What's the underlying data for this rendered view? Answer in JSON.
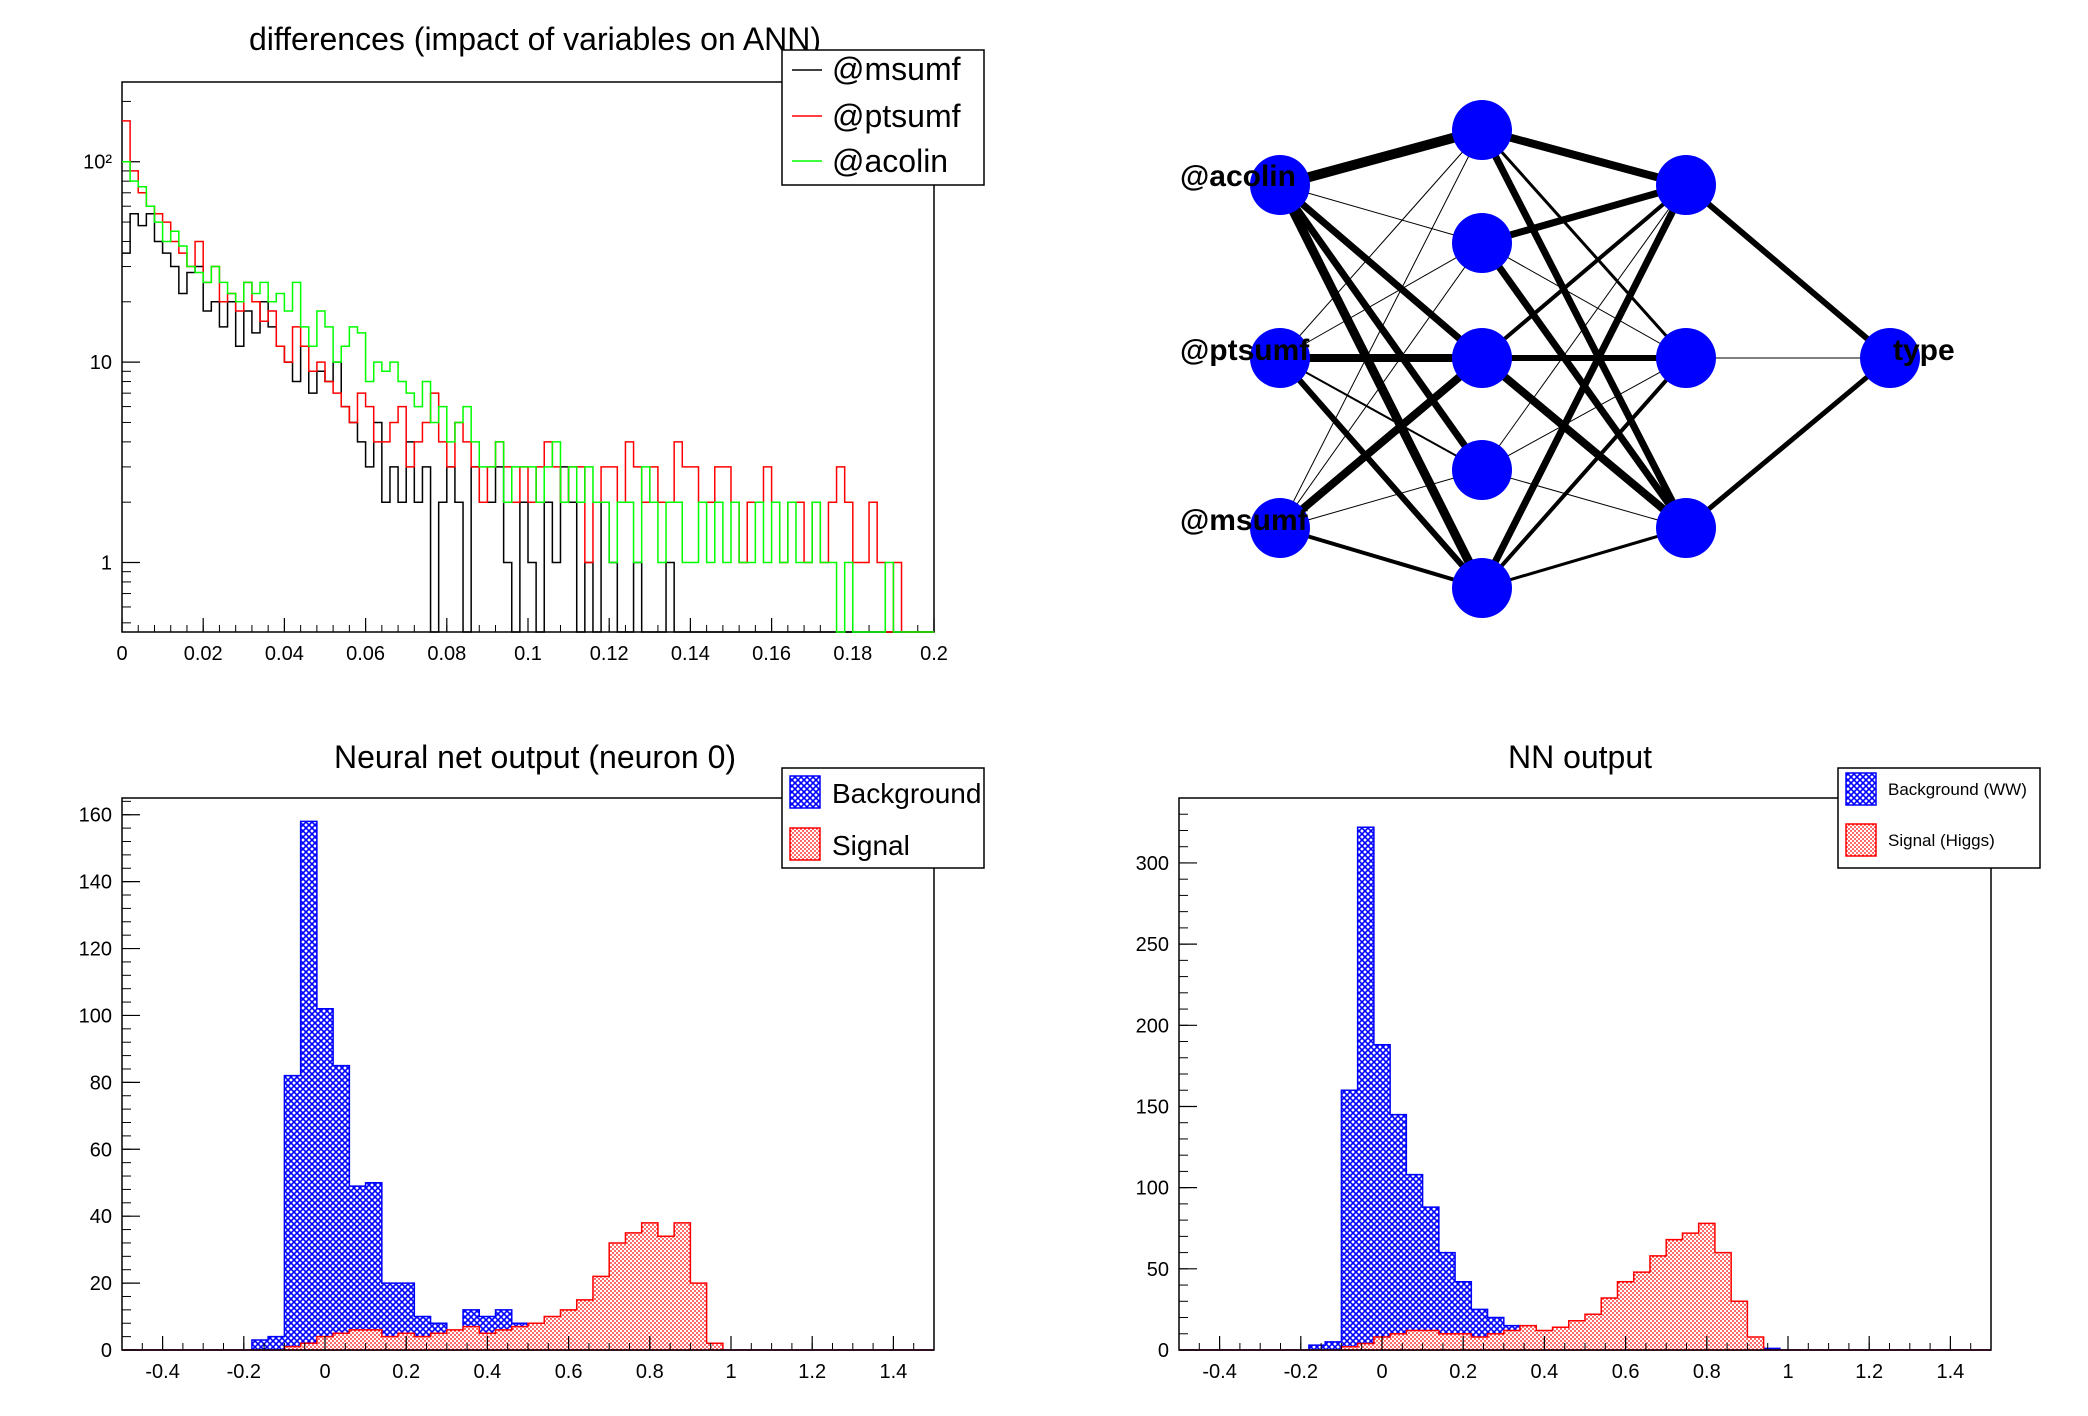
{
  "colors": {
    "black": "#000000",
    "red": "#ff0000",
    "green": "#00ff00",
    "blue": "#0000ff",
    "background_fill": "#0000ff",
    "signal_fill": "#ff0000"
  },
  "chart_data": [
    {
      "id": "impact",
      "type": "line",
      "title": "differences (impact of variables on ANN)",
      "xlabel": "",
      "ylabel": "",
      "xlim": [
        0,
        0.2
      ],
      "ylog": true,
      "ylim": [
        0.45,
        250
      ],
      "x_ticks": [
        "0",
        "0.02",
        "0.04",
        "0.06",
        "0.08",
        "0.1",
        "0.12",
        "0.14",
        "0.16",
        "0.18",
        "0.2"
      ],
      "y_ticks": [
        "1",
        "10",
        "10²"
      ],
      "legend": [
        "@msumf",
        "@ptsumf",
        "@acolin"
      ],
      "bin_width": 0.002,
      "series": [
        {
          "name": "@msumf",
          "color": "#000000",
          "values": [
            35,
            55,
            48,
            55,
            40,
            35,
            30,
            22,
            28,
            30,
            18,
            20,
            15,
            20,
            12,
            18,
            14,
            20,
            15,
            12,
            10,
            8,
            12,
            7,
            9,
            8,
            10,
            6,
            5,
            4,
            3,
            5,
            2,
            3,
            2,
            4,
            2,
            3,
            0.4,
            2,
            3,
            2,
            0.4,
            3,
            2,
            2,
            3,
            1,
            0.4,
            2,
            1,
            0.4,
            2,
            1,
            3,
            2,
            0.4,
            1,
            0.4,
            2,
            1,
            0.4,
            0.4,
            1,
            0.4,
            0.4,
            0.4,
            1,
            0.4,
            0.4,
            0.4,
            0.4,
            0.4,
            0.4,
            0.4,
            0.4,
            0.4,
            0.4,
            0.4,
            0.4,
            0.4,
            0.4,
            0.4,
            0.4,
            0.4,
            0.4,
            0.4,
            0.4,
            0.4,
            0.4,
            0.4,
            0.4,
            0.4,
            0.4,
            0.4,
            0.4,
            0.4,
            0.4,
            0.4,
            0.4
          ]
        },
        {
          "name": "@ptsumf",
          "color": "#ff0000",
          "values": [
            160,
            90,
            70,
            60,
            55,
            50,
            40,
            35,
            30,
            40,
            25,
            30,
            20,
            22,
            18,
            25,
            20,
            16,
            18,
            12,
            10,
            15,
            12,
            9,
            10,
            8,
            7,
            6,
            5,
            7,
            6,
            4,
            4,
            5,
            6,
            3,
            4,
            5,
            7,
            4,
            3,
            5,
            4,
            3,
            2,
            3,
            4,
            3,
            2,
            3,
            2,
            3,
            4,
            3,
            2,
            3,
            3,
            1,
            2,
            3,
            3,
            2,
            4,
            3,
            2,
            3,
            2,
            2,
            4,
            3,
            3,
            2,
            2,
            3,
            3,
            2,
            1,
            2,
            2,
            3,
            2,
            1,
            2,
            2,
            1,
            2,
            1,
            2,
            3,
            2,
            1,
            1,
            2,
            1,
            0.4,
            1,
            0.4,
            0.4,
            0.4,
            0.4
          ]
        },
        {
          "name": "@acolin",
          "color": "#00ff00",
          "values": [
            100,
            80,
            75,
            60,
            50,
            40,
            45,
            38,
            30,
            28,
            25,
            30,
            25,
            22,
            20,
            25,
            22,
            25,
            20,
            22,
            18,
            25,
            15,
            12,
            18,
            15,
            10,
            12,
            15,
            14,
            8,
            10,
            9,
            10,
            8,
            7,
            6,
            8,
            5,
            6,
            4,
            5,
            6,
            4,
            3,
            3,
            4,
            2,
            3,
            3,
            3,
            2,
            3,
            4,
            2,
            3,
            2,
            3,
            2,
            2,
            1,
            2,
            2,
            1,
            3,
            2,
            1,
            2,
            2,
            1,
            1,
            2,
            1,
            2,
            1,
            2,
            1,
            1,
            2,
            1,
            2,
            1,
            2,
            1,
            1,
            2,
            1,
            1,
            0.4,
            1,
            0.4,
            0.4,
            0.4,
            0.4,
            1,
            0.4,
            0.4,
            0.4,
            0.4,
            0.4
          ]
        }
      ]
    },
    {
      "id": "network",
      "type": "diagram",
      "input_labels": [
        "@acolin",
        "@ptsumf",
        "@msumf"
      ],
      "output_label": "type",
      "layers": [
        3,
        5,
        3,
        1
      ]
    },
    {
      "id": "nn_neuron0",
      "type": "bar",
      "title": "Neural net output (neuron 0)",
      "xlabel": "",
      "ylabel": "",
      "xlim": [
        -0.5,
        1.5
      ],
      "ylim": [
        0,
        165
      ],
      "x_ticks": [
        "-0.4",
        "-0.2",
        "0",
        "0.2",
        "0.4",
        "0.6",
        "0.8",
        "1",
        "1.2",
        "1.4"
      ],
      "y_ticks": [
        "0",
        "20",
        "40",
        "60",
        "80",
        "100",
        "120",
        "140",
        "160"
      ],
      "legend": [
        "Background",
        "Signal"
      ],
      "bin_start": -0.5,
      "bin_width": 0.04,
      "series": [
        {
          "name": "Background",
          "color": "#0000ff",
          "values": [
            0,
            0,
            0,
            0,
            0,
            0,
            0,
            0,
            3,
            4,
            82,
            158,
            102,
            85,
            49,
            50,
            20,
            20,
            10,
            8,
            5,
            12,
            10,
            12,
            8,
            8,
            6,
            6,
            5,
            4,
            4,
            3,
            2,
            2,
            2,
            1,
            0,
            0,
            0,
            0,
            0,
            0,
            0,
            0,
            0,
            0,
            0,
            0,
            0,
            0
          ]
        },
        {
          "name": "Signal",
          "color": "#ff0000",
          "values": [
            0,
            0,
            0,
            0,
            0,
            0,
            0,
            0,
            0,
            0,
            1,
            2,
            4,
            5,
            6,
            6,
            4,
            5,
            4,
            5,
            6,
            7,
            5,
            6,
            7,
            8,
            10,
            12,
            15,
            22,
            32,
            35,
            38,
            34,
            38,
            20,
            2,
            0,
            0,
            0,
            0,
            0,
            0,
            0,
            0,
            0,
            0,
            0,
            0,
            0
          ]
        }
      ]
    },
    {
      "id": "nn_output",
      "type": "bar",
      "title": "NN output",
      "xlabel": "",
      "ylabel": "",
      "xlim": [
        -0.5,
        1.5
      ],
      "ylim": [
        0,
        340
      ],
      "x_ticks": [
        "-0.4",
        "-0.2",
        "0",
        "0.2",
        "0.4",
        "0.6",
        "0.8",
        "1",
        "1.2",
        "1.4"
      ],
      "y_ticks": [
        "0",
        "50",
        "100",
        "150",
        "200",
        "250",
        "300"
      ],
      "legend": [
        "Background (WW)",
        "Signal (Higgs)"
      ],
      "bin_start": -0.5,
      "bin_width": 0.04,
      "series": [
        {
          "name": "Background (WW)",
          "color": "#0000ff",
          "values": [
            0,
            0,
            0,
            0,
            0,
            0,
            0,
            0,
            3,
            5,
            160,
            322,
            188,
            145,
            108,
            88,
            60,
            42,
            25,
            20,
            15,
            12,
            10,
            12,
            10,
            10,
            8,
            9,
            8,
            7,
            6,
            5,
            5,
            4,
            4,
            2,
            1,
            0,
            0,
            0,
            0,
            0,
            0,
            0,
            0,
            0,
            0,
            0,
            0,
            0
          ]
        },
        {
          "name": "Signal (Higgs)",
          "color": "#ff0000",
          "values": [
            0,
            0,
            0,
            0,
            0,
            0,
            0,
            0,
            0,
            0,
            2,
            4,
            8,
            10,
            12,
            12,
            10,
            10,
            8,
            10,
            12,
            15,
            12,
            14,
            18,
            22,
            32,
            42,
            48,
            58,
            68,
            72,
            78,
            60,
            30,
            8,
            0,
            0,
            0,
            0,
            0,
            0,
            0,
            0,
            0,
            0,
            0,
            0,
            0,
            0
          ]
        }
      ]
    }
  ]
}
